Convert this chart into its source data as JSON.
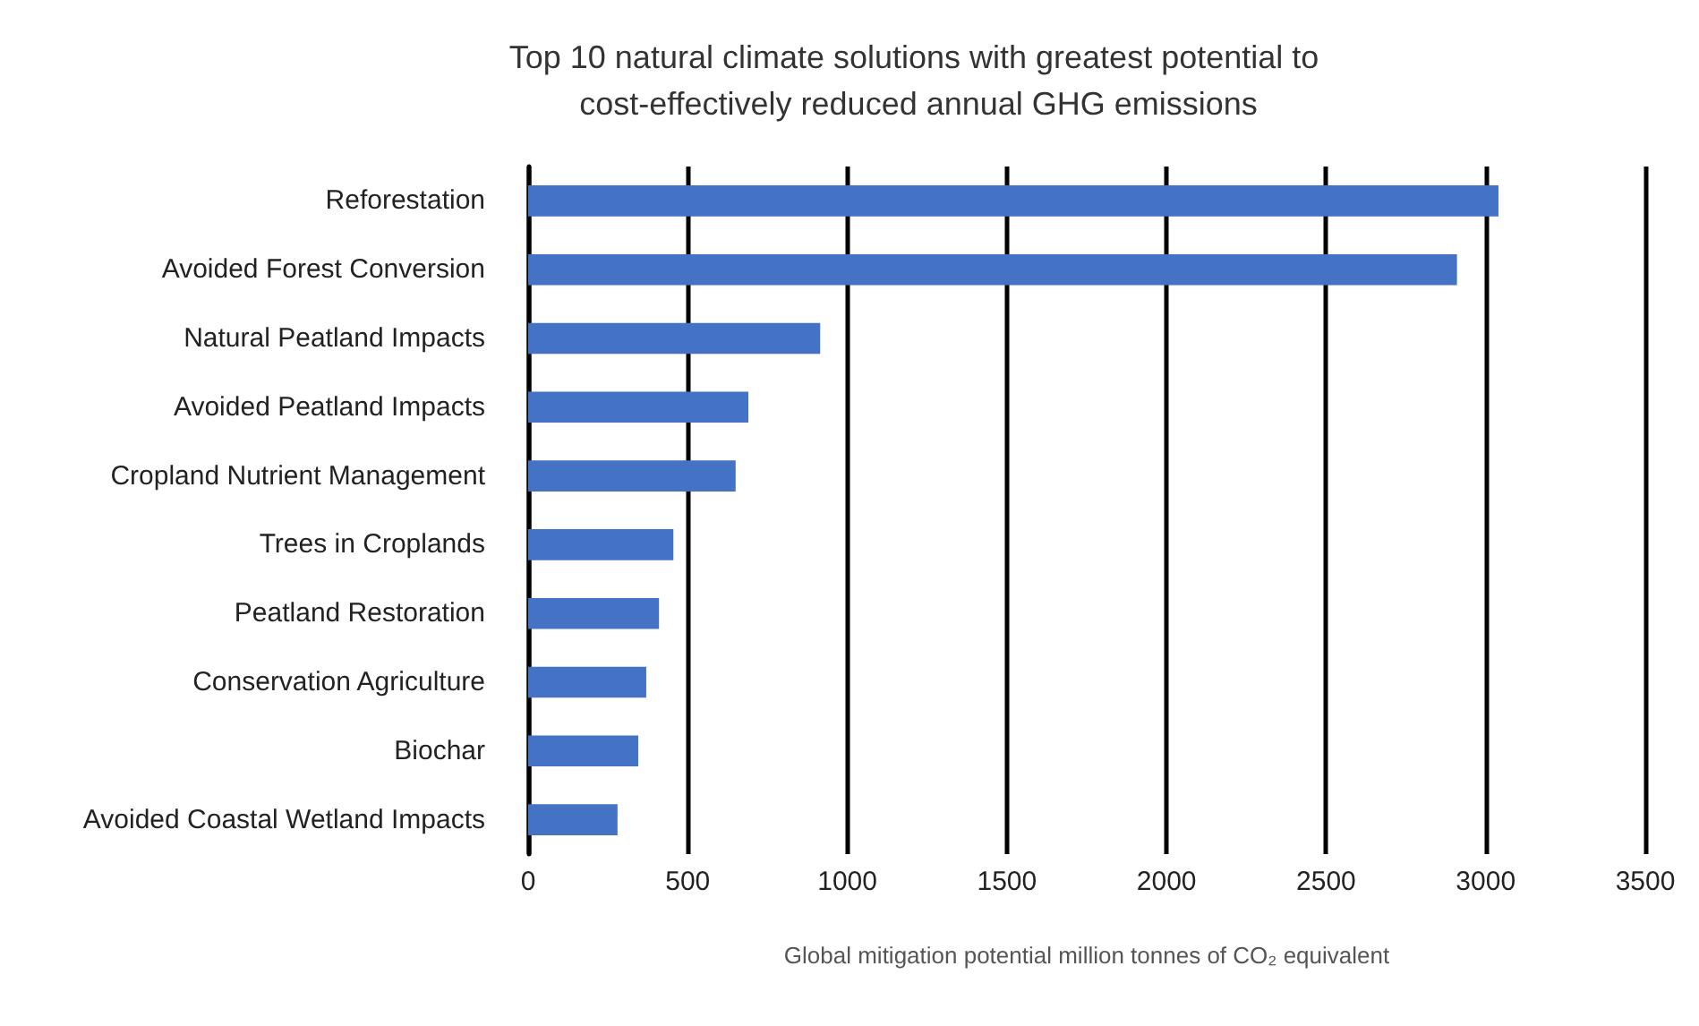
{
  "chart_data": {
    "type": "bar",
    "orientation": "horizontal",
    "title": "Top 10 natural climate solutions with greatest potential to cost-effectively reduced annual GHG emissions",
    "xlabel": "Global mitigation potential million tonnes of CO₂ equivalent",
    "categories": [
      "Reforestation",
      "Avoided Forest Conversion",
      "Natural Peatland Impacts",
      "Avoided Peatland Impacts",
      "Cropland Nutrient Management",
      "Trees in Croplands",
      "Peatland Restoration",
      "Conservation Agriculture",
      "Biochar",
      "Avoided Coastal Wetland Impacts"
    ],
    "values": [
      3040,
      2910,
      915,
      690,
      650,
      455,
      410,
      370,
      345,
      280
    ],
    "color": "#4472c4",
    "xlim": [
      0,
      3500
    ],
    "xticks": [
      0,
      500,
      1000,
      1500,
      2000,
      2500,
      3000,
      3500
    ],
    "grid": "x"
  }
}
